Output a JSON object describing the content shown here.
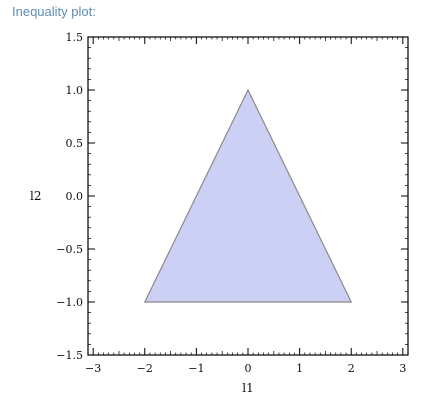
{
  "header": {
    "title": "Inequality plot:"
  },
  "chart_data": {
    "type": "area",
    "title": "",
    "xlabel": "l1",
    "ylabel": "l2",
    "xlim": [
      -3.1,
      3.1
    ],
    "ylim": [
      -1.5,
      1.5
    ],
    "x_ticks": [
      -3,
      -2,
      -1,
      0,
      1,
      2,
      3
    ],
    "x_tick_labels": [
      "−3",
      "−2",
      "−1",
      "0",
      "1",
      "2",
      "3"
    ],
    "y_ticks": [
      -1.5,
      -1.0,
      -0.5,
      0.0,
      0.5,
      1.0,
      1.5
    ],
    "y_tick_labels": [
      "−1.5",
      "−1.0",
      "−0.5",
      "0.0",
      "0.5",
      "1.0",
      "1.5"
    ],
    "region": {
      "shape": "triangle",
      "vertices": [
        [
          -2,
          -1
        ],
        [
          0,
          1
        ],
        [
          2,
          -1
        ]
      ],
      "fill": "#cdd0f5",
      "stroke": "#8a8a8a"
    },
    "frame": "box",
    "grid": false
  }
}
